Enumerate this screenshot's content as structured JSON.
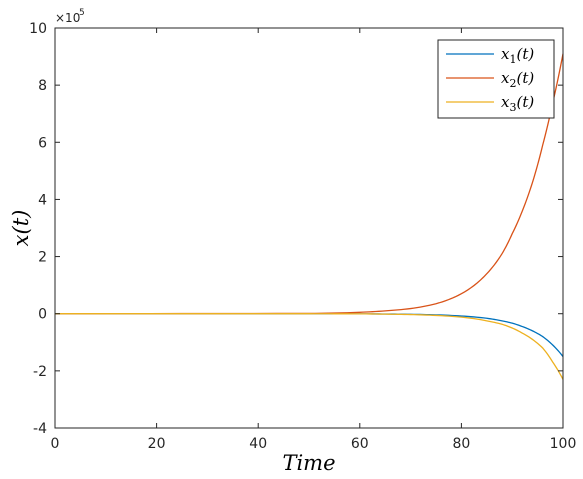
{
  "chart_data": {
    "type": "line",
    "xlabel": "Time",
    "ylabel": "x(t)",
    "xlim": [
      0,
      100
    ],
    "ylim": [
      -4,
      10
    ],
    "y_scale_exponent_label": "×10",
    "y_scale_exponent_power": "5",
    "x_ticks": [
      "0",
      "20",
      "40",
      "60",
      "80",
      "100"
    ],
    "y_ticks": [
      "-4",
      "-2",
      "0",
      "2",
      "4",
      "6",
      "8",
      "10"
    ],
    "grid": false,
    "legend_position": "top-right",
    "series": [
      {
        "name": "x_1(t)",
        "color": "#0072BD",
        "x": [
          0,
          50,
          60,
          65,
          70,
          75,
          80,
          85,
          88,
          90,
          92,
          94,
          96,
          98,
          100
        ],
        "y": [
          0,
          0,
          -0.005,
          -0.01,
          -0.02,
          -0.04,
          -0.08,
          -0.16,
          -0.25,
          -0.33,
          -0.45,
          -0.6,
          -0.8,
          -1.1,
          -1.5
        ]
      },
      {
        "name": "x_2(t)",
        "color": "#D95319",
        "x": [
          0,
          50,
          60,
          65,
          70,
          75,
          80,
          85,
          88,
          90,
          92,
          94,
          96,
          98,
          100
        ],
        "y": [
          0,
          0.01,
          0.05,
          0.1,
          0.18,
          0.35,
          0.7,
          1.4,
          2.1,
          2.8,
          3.6,
          4.6,
          5.9,
          7.4,
          9.1
        ]
      },
      {
        "name": "x_3(t)",
        "color": "#EDB120",
        "x": [
          0,
          50,
          60,
          65,
          70,
          75,
          80,
          85,
          88,
          90,
          92,
          94,
          96,
          98,
          100
        ],
        "y": [
          0,
          0,
          -0.005,
          -0.015,
          -0.03,
          -0.06,
          -0.12,
          -0.25,
          -0.37,
          -0.5,
          -0.68,
          -0.9,
          -1.2,
          -1.7,
          -2.3
        ]
      }
    ],
    "legend_entries": [
      {
        "base": "x",
        "sub": "1",
        "suffix": "(t)"
      },
      {
        "base": "x",
        "sub": "2",
        "suffix": "(t)"
      },
      {
        "base": "x",
        "sub": "3",
        "suffix": "(t)"
      }
    ]
  }
}
